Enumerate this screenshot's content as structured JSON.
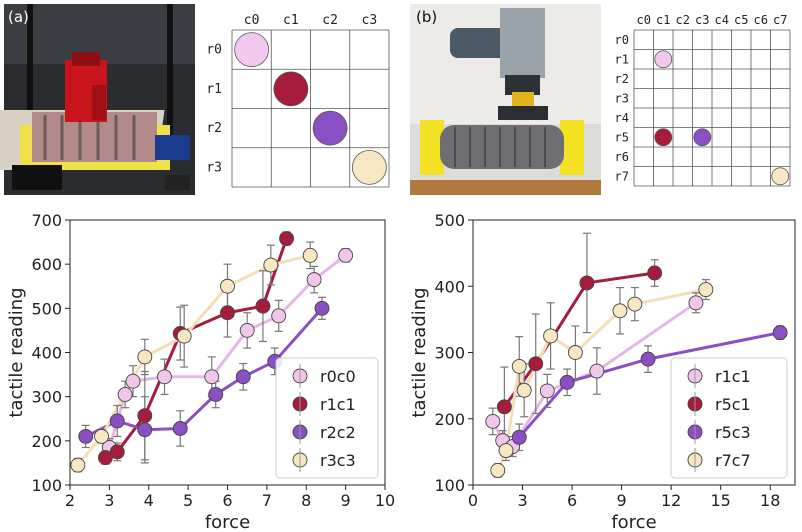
{
  "panel_a": {
    "label": "(a)",
    "grid": {
      "columns": [
        "c0",
        "c1",
        "c2",
        "c3"
      ],
      "rows": [
        "r0",
        "r1",
        "r2",
        "r3"
      ],
      "markers": [
        {
          "row": 0,
          "col": 0,
          "color": "#f2c8ee"
        },
        {
          "row": 1,
          "col": 1,
          "color": "#a51c3c"
        },
        {
          "row": 2,
          "col": 2,
          "color": "#8b4fc4"
        },
        {
          "row": 3,
          "col": 3,
          "color": "#f7e7c2"
        }
      ]
    }
  },
  "panel_b": {
    "label": "(b)",
    "grid": {
      "columns": [
        "c0",
        "c1",
        "c2",
        "c3",
        "c4",
        "c5",
        "c6",
        "c7"
      ],
      "rows": [
        "r0",
        "r1",
        "r2",
        "r3",
        "r4",
        "r5",
        "r6",
        "r7"
      ],
      "markers": [
        {
          "row": 1,
          "col": 1,
          "color": "#f2c8ee"
        },
        {
          "row": 5,
          "col": 1,
          "color": "#a51c3c"
        },
        {
          "row": 5,
          "col": 3,
          "color": "#8b4fc4"
        },
        {
          "row": 7,
          "col": 7,
          "color": "#f7e7c2"
        }
      ]
    }
  },
  "chart_data": [
    {
      "type": "line",
      "xlabel": "force",
      "ylabel": "tactile reading",
      "xlim": [
        2,
        10
      ],
      "ylim": [
        100,
        700
      ],
      "xticks": [
        2,
        3,
        4,
        5,
        6,
        7,
        8,
        9,
        10
      ],
      "yticks": [
        100,
        200,
        300,
        400,
        500,
        600,
        700
      ],
      "legend": "lower-right",
      "series": [
        {
          "name": "r0c0",
          "color": "#f0c6ea",
          "line": "#e8b6e6",
          "points": [
            [
              3.0,
              185
            ],
            [
              3.4,
              305
            ],
            [
              3.6,
              335
            ],
            [
              4.4,
              345
            ],
            [
              5.6,
              345
            ],
            [
              6.5,
              450
            ],
            [
              7.3,
              483
            ],
            [
              8.2,
              565
            ],
            [
              9.0,
              620
            ]
          ],
          "err": [
            20,
            30,
            35,
            40,
            45,
            40,
            35,
            30,
            15
          ]
        },
        {
          "name": "r1c1",
          "color": "#a51c3c",
          "line": "#a51c3c",
          "points": [
            [
              2.9,
              162
            ],
            [
              3.2,
              175
            ],
            [
              3.9,
              257
            ],
            [
              4.8,
              443
            ],
            [
              6.0,
              490
            ],
            [
              6.9,
              505
            ],
            [
              7.5,
              658
            ]
          ],
          "err": [
            15,
            20,
            100,
            60,
            55,
            80,
            15
          ]
        },
        {
          "name": "r2c2",
          "color": "#8b4fc4",
          "line": "#8b4fc4",
          "points": [
            [
              2.4,
              210
            ],
            [
              3.2,
              245
            ],
            [
              3.9,
              225
            ],
            [
              4.8,
              228
            ],
            [
              5.7,
              305
            ],
            [
              6.4,
              345
            ],
            [
              7.2,
              380
            ],
            [
              8.4,
              500
            ]
          ],
          "err": [
            25,
            35,
            75,
            40,
            30,
            30,
            30,
            25
          ]
        },
        {
          "name": "r3c3",
          "color": "#f7e7c2",
          "line": "#f4deb6",
          "points": [
            [
              2.2,
              145
            ],
            [
              2.8,
              210
            ],
            [
              3.9,
              390
            ],
            [
              4.9,
              437
            ],
            [
              6.0,
              550
            ],
            [
              7.1,
              598
            ],
            [
              8.1,
              620
            ]
          ],
          "err": [
            15,
            15,
            40,
            70,
            50,
            45,
            30
          ]
        }
      ]
    },
    {
      "type": "line",
      "xlabel": "force",
      "ylabel": "tactile reading",
      "xlim": [
        0,
        19.5
      ],
      "ylim": [
        100,
        500
      ],
      "xticks": [
        0,
        3,
        6,
        9,
        12,
        15,
        18
      ],
      "yticks": [
        100,
        200,
        300,
        400,
        500
      ],
      "legend": "lower-right",
      "series": [
        {
          "name": "r1c1",
          "color": "#f0c6ea",
          "line": "#e8b6e6",
          "points": [
            [
              1.2,
              196
            ],
            [
              1.8,
              167
            ],
            [
              2.4,
              158
            ],
            [
              4.5,
              242
            ],
            [
              7.5,
              272
            ],
            [
              13.5,
              375
            ]
          ],
          "err": [
            20,
            15,
            15,
            25,
            35,
            15
          ]
        },
        {
          "name": "r5c1",
          "color": "#a51c3c",
          "line": "#a51c3c",
          "points": [
            [
              1.9,
              218
            ],
            [
              3.8,
              283
            ],
            [
              6.9,
              405
            ],
            [
              11.0,
              420
            ]
          ],
          "err": [
            60,
            75,
            75,
            20
          ]
        },
        {
          "name": "r5c3",
          "color": "#8b4fc4",
          "line": "#8b4fc4",
          "points": [
            [
              2.8,
              172
            ],
            [
              5.7,
              255
            ],
            [
              10.6,
              290
            ],
            [
              18.6,
              330
            ]
          ],
          "err": [
            20,
            20,
            20,
            10
          ]
        },
        {
          "name": "r7c7",
          "color": "#f7e7c2",
          "line": "#f4deb6",
          "points": [
            [
              1.5,
              122
            ],
            [
              2.0,
              152
            ],
            [
              2.8,
              279
            ],
            [
              3.1,
              243
            ],
            [
              4.7,
              325
            ],
            [
              6.2,
              300
            ],
            [
              8.9,
              363
            ],
            [
              9.8,
              373
            ],
            [
              14.1,
              395
            ]
          ],
          "err": [
            10,
            15,
            45,
            40,
            50,
            40,
            35,
            25,
            15
          ]
        }
      ]
    }
  ]
}
